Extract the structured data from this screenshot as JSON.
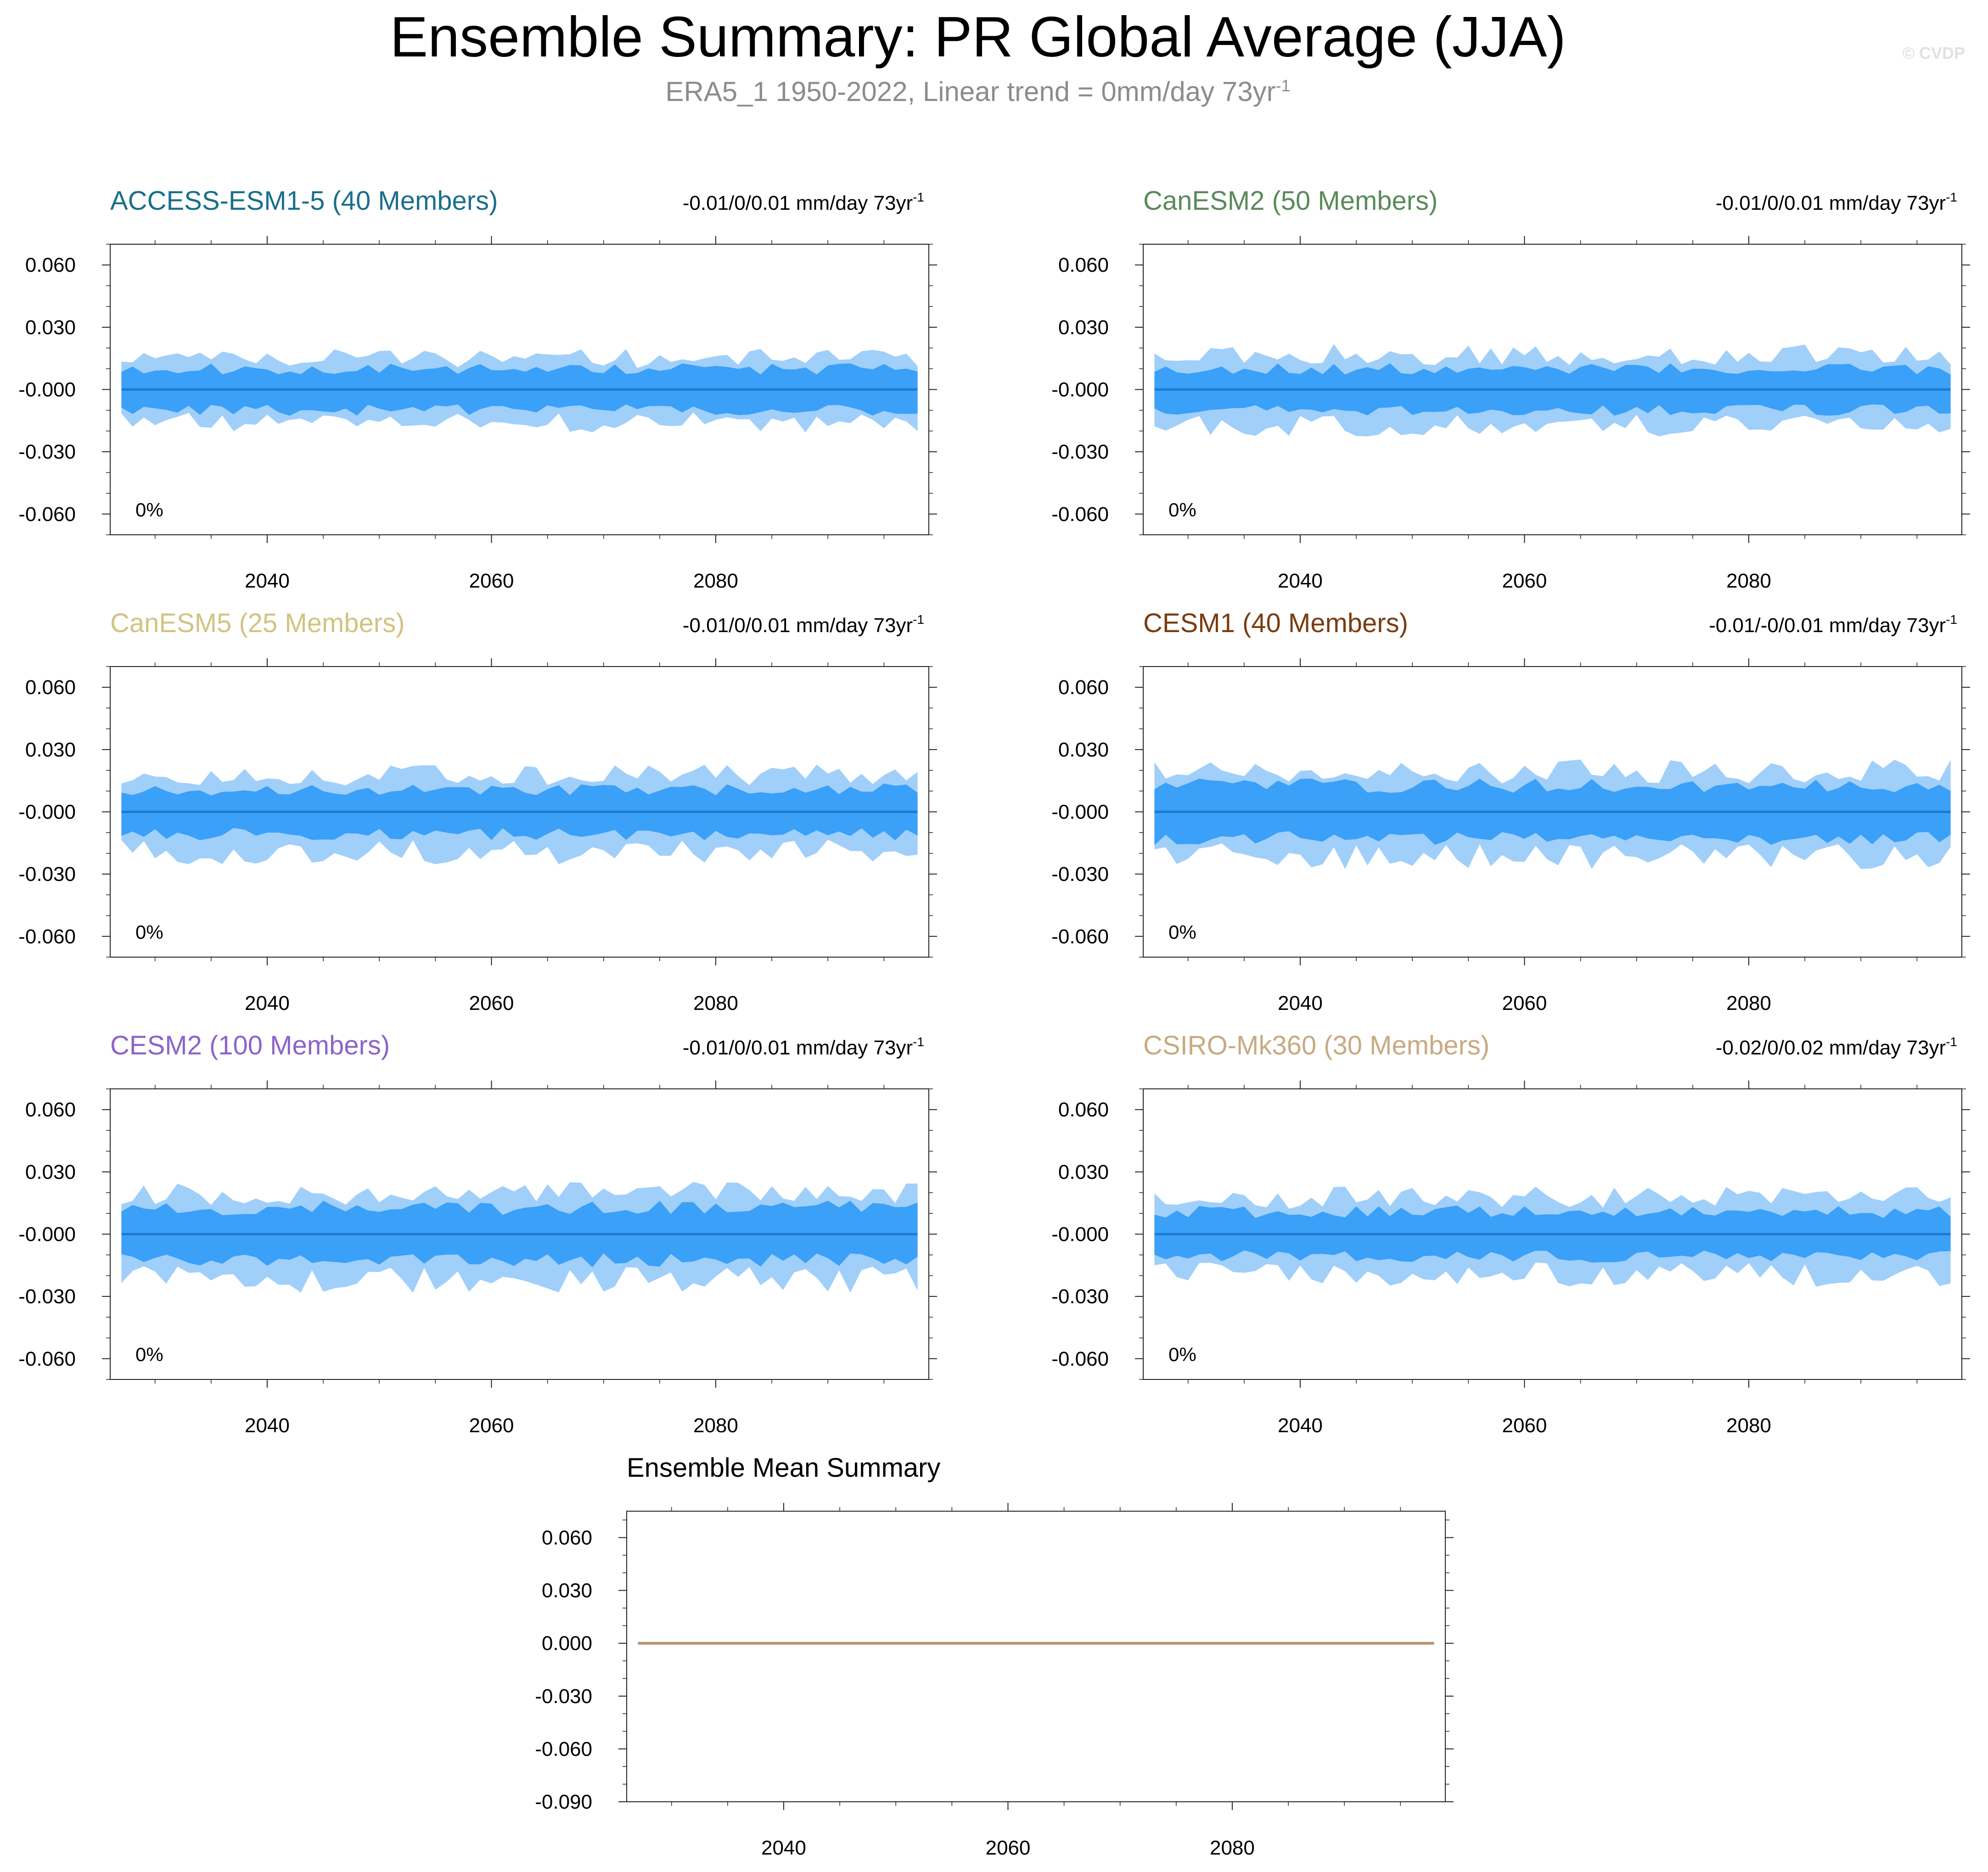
{
  "title": "Ensemble Summary: PR Global Average (JJA)",
  "subtitle": {
    "text": "ERA5_1 1950-2022, Linear trend = 0mm/day 73yr",
    "superscript": "-1"
  },
  "watermark": "© CVDP",
  "chart_data": [
    {
      "type": "area",
      "title": "ACCESS-ESM1-5 (40 Members)",
      "title_color": "#1a6f8c",
      "trend_label": "-0.01/0/0.01 mm/day 73yr",
      "trend_sup": "-1",
      "percent_label": "0%",
      "x_range": [
        2026,
        2099
      ],
      "ylim": [
        -0.07,
        0.07
      ],
      "y_ticks": [
        "0.060",
        "0.030",
        "-0.000",
        "-0.030",
        "-0.060"
      ],
      "y_tick_values": [
        0.06,
        0.03,
        0,
        -0.03,
        -0.06
      ],
      "x_ticks": [
        "2040",
        "2060",
        "2080"
      ],
      "x_tick_values": [
        2040,
        2060,
        2080
      ],
      "outer_range": [
        -0.018,
        0.017
      ],
      "inner_range": [
        -0.011,
        0.011
      ],
      "median": 0,
      "seed": 11
    },
    {
      "type": "area",
      "title": "CanESM2 (50 Members)",
      "title_color": "#5a8a5a",
      "trend_label": "-0.01/0/0.01 mm/day 73yr",
      "trend_sup": "-1",
      "percent_label": "0%",
      "x_range": [
        2026,
        2099
      ],
      "ylim": [
        -0.07,
        0.07
      ],
      "y_ticks": [
        "0.060",
        "0.030",
        "-0.000",
        "-0.030",
        "-0.060"
      ],
      "y_tick_values": [
        0.06,
        0.03,
        0,
        -0.03,
        -0.06
      ],
      "x_ticks": [
        "2040",
        "2060",
        "2080"
      ],
      "x_tick_values": [
        2040,
        2060,
        2080
      ],
      "outer_range": [
        -0.02,
        0.019
      ],
      "inner_range": [
        -0.011,
        0.011
      ],
      "median": 0,
      "seed": 23
    },
    {
      "type": "area",
      "title": "CanESM5 (25 Members)",
      "title_color": "#d2c382",
      "trend_label": "-0.01/0/0.01 mm/day 73yr",
      "trend_sup": "-1",
      "percent_label": "0%",
      "x_range": [
        2026,
        2099
      ],
      "ylim": [
        -0.07,
        0.07
      ],
      "y_ticks": [
        "0.060",
        "0.030",
        "-0.000",
        "-0.030",
        "-0.060"
      ],
      "y_tick_values": [
        0.06,
        0.03,
        0,
        -0.03,
        -0.06
      ],
      "x_ticks": [
        "2040",
        "2060",
        "2080"
      ],
      "x_tick_values": [
        2040,
        2060,
        2080
      ],
      "outer_range": [
        -0.022,
        0.02
      ],
      "inner_range": [
        -0.012,
        0.012
      ],
      "median": 0,
      "seed": 37
    },
    {
      "type": "area",
      "title": "CESM1 (40 Members)",
      "title_color": "#7a3c0f",
      "trend_label": "-0.01/-0/0.01 mm/day 73yr",
      "trend_sup": "-1",
      "percent_label": "0%",
      "x_range": [
        2026,
        2099
      ],
      "ylim": [
        -0.07,
        0.07
      ],
      "y_ticks": [
        "0.060",
        "0.030",
        "-0.000",
        "-0.030",
        "-0.060"
      ],
      "y_tick_values": [
        0.06,
        0.03,
        0,
        -0.03,
        -0.06
      ],
      "x_ticks": [
        "2040",
        "2060",
        "2080"
      ],
      "x_tick_values": [
        2040,
        2060,
        2080
      ],
      "outer_range": [
        -0.024,
        0.022
      ],
      "inner_range": [
        -0.014,
        0.014
      ],
      "median": 0,
      "seed": 41
    },
    {
      "type": "area",
      "title": "CESM2 (100 Members)",
      "title_color": "#8c64c8",
      "trend_label": "-0.01/0/0.01 mm/day 73yr",
      "trend_sup": "-1",
      "percent_label": "0%",
      "x_range": [
        2026,
        2099
      ],
      "ylim": [
        -0.07,
        0.07
      ],
      "y_ticks": [
        "0.060",
        "0.030",
        "-0.000",
        "-0.030",
        "-0.060"
      ],
      "y_tick_values": [
        0.06,
        0.03,
        0,
        -0.03,
        -0.06
      ],
      "x_ticks": [
        "2040",
        "2060",
        "2080"
      ],
      "x_tick_values": [
        2040,
        2060,
        2080
      ],
      "outer_range": [
        -0.025,
        0.022
      ],
      "inner_range": [
        -0.014,
        0.014
      ],
      "median": 0,
      "seed": 53
    },
    {
      "type": "area",
      "title": "CSIRO-Mk360 (30 Members)",
      "title_color": "#c8aa82",
      "trend_label": "-0.02/0/0.02 mm/day 73yr",
      "trend_sup": "-1",
      "percent_label": "0%",
      "x_range": [
        2026,
        2099
      ],
      "ylim": [
        -0.07,
        0.07
      ],
      "y_ticks": [
        "0.060",
        "0.030",
        "-0.000",
        "-0.030",
        "-0.060"
      ],
      "y_tick_values": [
        0.06,
        0.03,
        0,
        -0.03,
        -0.06
      ],
      "x_ticks": [
        "2040",
        "2060",
        "2080"
      ],
      "x_tick_values": [
        2040,
        2060,
        2080
      ],
      "outer_range": [
        -0.022,
        0.02
      ],
      "inner_range": [
        -0.012,
        0.012
      ],
      "median": 0,
      "seed": 67
    },
    {
      "type": "line",
      "title": "Ensemble Mean Summary",
      "title_color": "#000000",
      "x_range": [
        2026,
        2099
      ],
      "ylim": [
        -0.09,
        0.075
      ],
      "y_ticks": [
        "0.060",
        "0.030",
        "0.000",
        "-0.030",
        "-0.060",
        "-0.090"
      ],
      "y_tick_values": [
        0.06,
        0.03,
        0,
        -0.03,
        -0.06,
        -0.09
      ],
      "x_ticks": [
        "2040",
        "2060",
        "2080"
      ],
      "x_tick_values": [
        2040,
        2060,
        2080
      ],
      "series": [
        {
          "name": "Ensemble mean",
          "color": "#b4966e",
          "x": [
            2027,
            2098
          ],
          "values": [
            0,
            0
          ]
        }
      ]
    }
  ],
  "colors": {
    "outer_band": "#a0cffa",
    "inner_band": "#3aa0f8",
    "median_line": "#1e78d2"
  }
}
